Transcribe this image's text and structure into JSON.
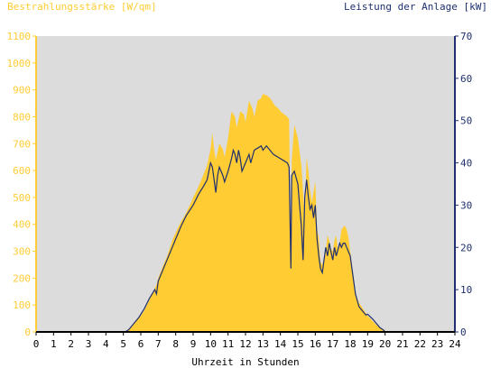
{
  "chart_data": {
    "type": "area",
    "left_title": "Bestrahlungsstärke [W/qm]",
    "right_title": "Leistung der Anlage [kW]",
    "xlabel": "Uhrzeit in Stunden",
    "x_ticks": [
      "0",
      "1",
      "2",
      "3",
      "4",
      "5",
      "6",
      "7",
      "8",
      "9",
      "10",
      "11",
      "12",
      "13",
      "14",
      "15",
      "16",
      "17",
      "18",
      "19",
      "20",
      "21",
      "22",
      "23",
      "24"
    ],
    "left_ticks": [
      "0",
      "100",
      "200",
      "300",
      "400",
      "500",
      "600",
      "700",
      "800",
      "900",
      "1000",
      "1100"
    ],
    "right_ticks": [
      "0",
      "10",
      "20",
      "30",
      "40",
      "50",
      "60",
      "70"
    ],
    "xlim": [
      0,
      24
    ],
    "ylim_left": [
      0,
      1100
    ],
    "ylim_right": [
      0,
      70
    ],
    "grid": false,
    "colors": {
      "background": "#ffffff",
      "plot_area": "#dcdcdc",
      "irradiance_fill": "#ffcc33",
      "power_line": "#1f2f6f",
      "left_axis": "#ffcc33",
      "right_axis": "#1f2f6f",
      "x_axis": "#000000"
    },
    "series": [
      {
        "name": "Bestrahlungsstärke",
        "axis": "left",
        "style": "area",
        "points": [
          [
            0,
            0
          ],
          [
            5.0,
            0
          ],
          [
            5.2,
            5
          ],
          [
            5.5,
            20
          ],
          [
            5.8,
            45
          ],
          [
            6.0,
            60
          ],
          [
            6.2,
            80
          ],
          [
            6.5,
            120
          ],
          [
            6.7,
            150
          ],
          [
            6.9,
            175
          ],
          [
            7.0,
            200
          ],
          [
            7.3,
            250
          ],
          [
            7.5,
            280
          ],
          [
            7.8,
            340
          ],
          [
            8.0,
            370
          ],
          [
            8.3,
            410
          ],
          [
            8.5,
            430
          ],
          [
            8.8,
            470
          ],
          [
            9.0,
            500
          ],
          [
            9.3,
            540
          ],
          [
            9.5,
            570
          ],
          [
            9.8,
            620
          ],
          [
            10.0,
            680
          ],
          [
            10.1,
            740
          ],
          [
            10.2,
            680
          ],
          [
            10.3,
            640
          ],
          [
            10.5,
            700
          ],
          [
            10.7,
            680
          ],
          [
            10.8,
            650
          ],
          [
            11.0,
            720
          ],
          [
            11.2,
            820
          ],
          [
            11.4,
            800
          ],
          [
            11.5,
            760
          ],
          [
            11.7,
            820
          ],
          [
            11.9,
            810
          ],
          [
            12.0,
            780
          ],
          [
            12.2,
            860
          ],
          [
            12.4,
            830
          ],
          [
            12.5,
            800
          ],
          [
            12.7,
            860
          ],
          [
            12.9,
            870
          ],
          [
            13.0,
            885
          ],
          [
            13.2,
            880
          ],
          [
            13.4,
            870
          ],
          [
            13.5,
            860
          ],
          [
            13.7,
            840
          ],
          [
            13.9,
            830
          ],
          [
            14.0,
            820
          ],
          [
            14.2,
            810
          ],
          [
            14.4,
            800
          ],
          [
            14.5,
            790
          ],
          [
            14.6,
            270
          ],
          [
            14.65,
            640
          ],
          [
            14.8,
            770
          ],
          [
            15.0,
            720
          ],
          [
            15.2,
            620
          ],
          [
            15.4,
            420
          ],
          [
            15.5,
            650
          ],
          [
            15.6,
            600
          ],
          [
            15.7,
            530
          ],
          [
            15.8,
            480
          ],
          [
            15.9,
            520
          ],
          [
            16.0,
            560
          ],
          [
            16.1,
            380
          ],
          [
            16.2,
            350
          ],
          [
            16.3,
            260
          ],
          [
            16.4,
            250
          ],
          [
            16.6,
            300
          ],
          [
            16.7,
            360
          ],
          [
            16.8,
            340
          ],
          [
            16.9,
            310
          ],
          [
            17.0,
            300
          ],
          [
            17.1,
            340
          ],
          [
            17.2,
            360
          ],
          [
            17.3,
            300
          ],
          [
            17.4,
            330
          ],
          [
            17.5,
            380
          ],
          [
            17.6,
            390
          ],
          [
            17.7,
            395
          ],
          [
            17.8,
            380
          ],
          [
            17.9,
            350
          ],
          [
            18.0,
            300
          ],
          [
            18.2,
            200
          ],
          [
            18.3,
            140
          ],
          [
            18.5,
            110
          ],
          [
            18.7,
            90
          ],
          [
            18.9,
            70
          ],
          [
            19.0,
            60
          ],
          [
            19.3,
            40
          ],
          [
            19.6,
            20
          ],
          [
            19.8,
            10
          ],
          [
            20.0,
            5
          ],
          [
            20.1,
            0
          ],
          [
            24,
            0
          ]
        ]
      },
      {
        "name": "Leistung",
        "axis": "right",
        "style": "line",
        "points": [
          [
            0,
            0
          ],
          [
            5.1,
            0
          ],
          [
            5.3,
            0.5
          ],
          [
            5.6,
            2
          ],
          [
            5.9,
            3.5
          ],
          [
            6.2,
            5.5
          ],
          [
            6.5,
            8
          ],
          [
            6.8,
            10
          ],
          [
            6.9,
            9
          ],
          [
            7.0,
            12
          ],
          [
            7.3,
            15
          ],
          [
            7.5,
            17
          ],
          [
            7.8,
            20
          ],
          [
            8.0,
            22
          ],
          [
            8.3,
            25
          ],
          [
            8.6,
            27.5
          ],
          [
            9.0,
            30
          ],
          [
            9.3,
            32.5
          ],
          [
            9.6,
            34.5
          ],
          [
            9.8,
            36
          ],
          [
            10.0,
            40
          ],
          [
            10.1,
            39
          ],
          [
            10.2,
            36
          ],
          [
            10.3,
            33
          ],
          [
            10.4,
            37
          ],
          [
            10.5,
            39
          ],
          [
            10.7,
            37
          ],
          [
            10.8,
            35.5
          ],
          [
            11.0,
            38
          ],
          [
            11.2,
            41
          ],
          [
            11.3,
            43
          ],
          [
            11.4,
            42
          ],
          [
            11.5,
            40
          ],
          [
            11.6,
            43
          ],
          [
            11.7,
            41
          ],
          [
            11.8,
            38
          ],
          [
            12.0,
            40
          ],
          [
            12.2,
            42
          ],
          [
            12.3,
            40
          ],
          [
            12.5,
            43
          ],
          [
            12.7,
            43.5
          ],
          [
            12.9,
            44
          ],
          [
            13.0,
            43
          ],
          [
            13.2,
            44
          ],
          [
            13.4,
            43
          ],
          [
            13.6,
            42
          ],
          [
            13.8,
            41.5
          ],
          [
            14.0,
            41
          ],
          [
            14.2,
            40.5
          ],
          [
            14.4,
            40
          ],
          [
            14.5,
            39
          ],
          [
            14.6,
            15
          ],
          [
            14.65,
            37
          ],
          [
            14.8,
            38
          ],
          [
            15.0,
            35
          ],
          [
            15.1,
            30
          ],
          [
            15.2,
            25
          ],
          [
            15.3,
            17
          ],
          [
            15.4,
            32
          ],
          [
            15.5,
            36
          ],
          [
            15.6,
            32
          ],
          [
            15.7,
            29
          ],
          [
            15.8,
            30
          ],
          [
            15.9,
            27
          ],
          [
            16.0,
            30
          ],
          [
            16.1,
            22
          ],
          [
            16.2,
            18
          ],
          [
            16.3,
            15
          ],
          [
            16.4,
            14
          ],
          [
            16.5,
            17
          ],
          [
            16.6,
            20
          ],
          [
            16.7,
            18
          ],
          [
            16.8,
            21
          ],
          [
            16.9,
            19
          ],
          [
            17.0,
            17
          ],
          [
            17.1,
            20
          ],
          [
            17.2,
            18
          ],
          [
            17.4,
            21
          ],
          [
            17.5,
            20
          ],
          [
            17.6,
            21
          ],
          [
            17.7,
            21
          ],
          [
            17.8,
            20
          ],
          [
            18.0,
            18
          ],
          [
            18.1,
            15
          ],
          [
            18.3,
            9
          ],
          [
            18.5,
            6
          ],
          [
            18.7,
            5
          ],
          [
            18.9,
            4
          ],
          [
            19.0,
            4.2
          ],
          [
            19.3,
            3
          ],
          [
            19.5,
            2
          ],
          [
            19.7,
            1
          ],
          [
            19.9,
            0.5
          ],
          [
            20.0,
            0
          ],
          [
            24,
            0
          ]
        ]
      }
    ]
  }
}
